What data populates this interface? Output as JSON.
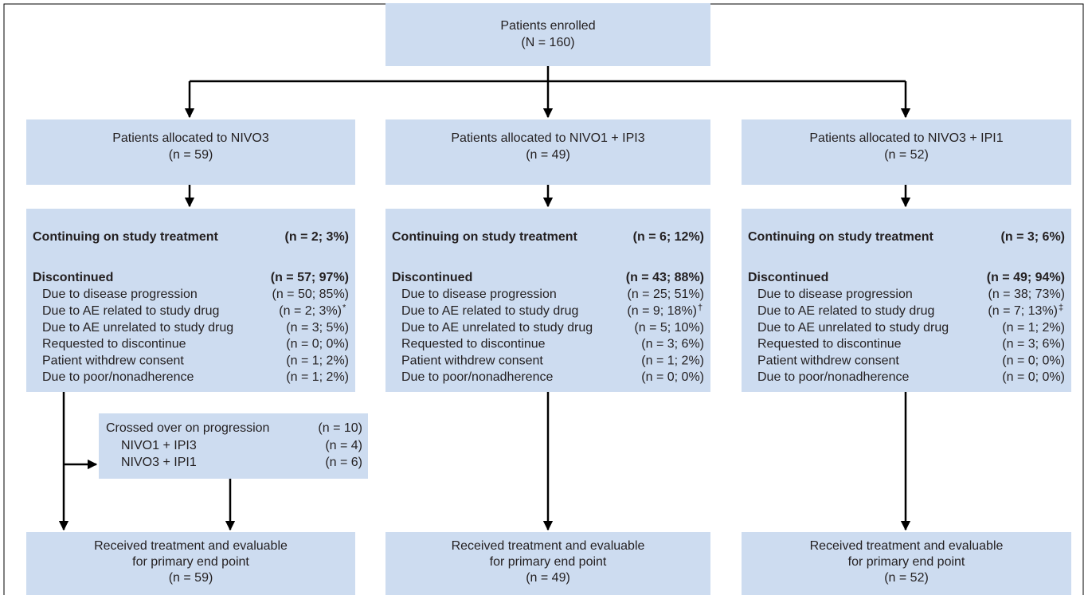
{
  "enrolled": {
    "lines": [
      "Patients enrolled",
      "(N = 160)"
    ]
  },
  "arms": [
    {
      "allocated": [
        "Patients allocated to NIVO3",
        "(n = 59)"
      ],
      "continuing": {
        "label": "Continuing on study treatment",
        "value": "(n = 2; 3%)"
      },
      "discontinued": {
        "label": "Discontinued",
        "value": "(n = 57; 97%)"
      },
      "reasons": [
        {
          "label": "Due to disease progression",
          "value": "(n = 50; 85%)"
        },
        {
          "label": "Due to AE related to study drug",
          "value": "(n = 2; 3%)",
          "note": "*"
        },
        {
          "label": "Due to AE unrelated to study drug",
          "value": "(n = 3; 5%)"
        },
        {
          "label": "Requested to discontinue",
          "value": "(n = 0; 0%)"
        },
        {
          "label": "Patient withdrew consent",
          "value": "(n = 1; 2%)"
        },
        {
          "label": "Due to poor/nonadherence",
          "value": "(n = 1; 2%)"
        }
      ],
      "outcome": [
        "Received treatment and evaluable",
        "for primary end point",
        "(n = 59)"
      ]
    },
    {
      "allocated": [
        "Patients allocated to NIVO1 + IPI3",
        "(n = 49)"
      ],
      "continuing": {
        "label": "Continuing on study treatment",
        "value": "(n = 6; 12%)"
      },
      "discontinued": {
        "label": "Discontinued",
        "value": "(n = 43; 88%)"
      },
      "reasons": [
        {
          "label": "Due to disease progression",
          "value": "(n = 25; 51%)"
        },
        {
          "label": "Due to AE related to study drug",
          "value": "(n = 9; 18%)",
          "note": "†"
        },
        {
          "label": "Due to AE unrelated to study drug",
          "value": "(n = 5; 10%)"
        },
        {
          "label": "Requested to discontinue",
          "value": "(n = 3; 6%)"
        },
        {
          "label": "Patient withdrew consent",
          "value": "(n = 1; 2%)"
        },
        {
          "label": "Due to poor/nonadherence",
          "value": "(n = 0; 0%)"
        }
      ],
      "outcome": [
        "Received treatment and evaluable",
        "for primary end point",
        "(n = 49)"
      ]
    },
    {
      "allocated": [
        "Patients allocated to NIVO3 + IPI1",
        "(n = 52)"
      ],
      "continuing": {
        "label": "Continuing on study treatment",
        "value": "(n = 3; 6%)"
      },
      "discontinued": {
        "label": "Discontinued",
        "value": "(n = 49; 94%)"
      },
      "reasons": [
        {
          "label": "Due to disease progression",
          "value": "(n = 38; 73%)"
        },
        {
          "label": "Due to AE related to study drug",
          "value": "(n = 7; 13%)",
          "note": "‡"
        },
        {
          "label": "Due to AE unrelated to study drug",
          "value": "(n = 1; 2%)"
        },
        {
          "label": "Requested to discontinue",
          "value": "(n = 3; 6%)"
        },
        {
          "label": "Patient withdrew consent",
          "value": "(n = 0; 0%)"
        },
        {
          "label": "Due to poor/nonadherence",
          "value": "(n = 0; 0%)"
        }
      ],
      "outcome": [
        "Received treatment and evaluable",
        "for primary end point",
        "(n = 52)"
      ]
    }
  ],
  "crossover": {
    "label": "Crossed over on progression",
    "value": "(n = 10)",
    "rows": [
      {
        "label": "NIVO1 + IPI3",
        "value": "(n = 4)"
      },
      {
        "label": "NIVO3 + IPI1",
        "value": "(n = 6)"
      }
    ]
  }
}
